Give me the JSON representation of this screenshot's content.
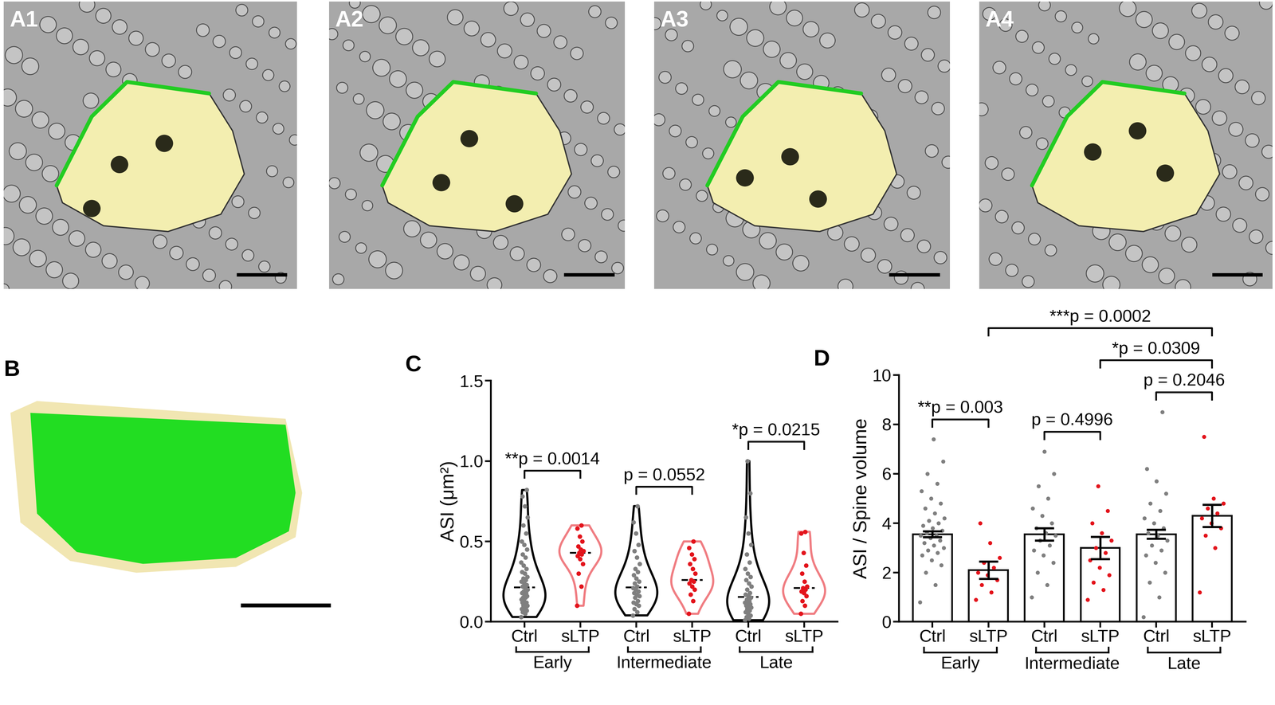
{
  "image_panels": [
    "A1",
    "A2",
    "A3",
    "A4",
    "B"
  ],
  "chart_data": [
    {
      "panel": "C",
      "type": "violin",
      "ylabel": "ASI (μm²)",
      "categories": [
        "Ctrl",
        "sLTP",
        "Ctrl",
        "sLTP",
        "Ctrl",
        "sLTP"
      ],
      "groups": [
        "Early",
        "Intermediate",
        "Late"
      ],
      "colors": [
        "#7f7f7f",
        "#e3131b",
        "#7f7f7f",
        "#e3131b",
        "#7f7f7f",
        "#e3131b"
      ],
      "points": [
        [
          0.03,
          0.05,
          0.06,
          0.07,
          0.08,
          0.08,
          0.09,
          0.1,
          0.1,
          0.11,
          0.12,
          0.12,
          0.13,
          0.14,
          0.15,
          0.15,
          0.16,
          0.17,
          0.18,
          0.18,
          0.19,
          0.2,
          0.21,
          0.22,
          0.23,
          0.24,
          0.25,
          0.26,
          0.27,
          0.28,
          0.3,
          0.31,
          0.33,
          0.35,
          0.37,
          0.4,
          0.42,
          0.45,
          0.48,
          0.5,
          0.55,
          0.6,
          0.65,
          0.72,
          0.78,
          0.82
        ],
        [
          0.1,
          0.22,
          0.3,
          0.36,
          0.39,
          0.41,
          0.42,
          0.43,
          0.44,
          0.45,
          0.47,
          0.5,
          0.53,
          0.58,
          0.6
        ],
        [
          0.04,
          0.06,
          0.08,
          0.1,
          0.11,
          0.12,
          0.13,
          0.15,
          0.16,
          0.17,
          0.18,
          0.19,
          0.2,
          0.21,
          0.22,
          0.24,
          0.25,
          0.27,
          0.29,
          0.31,
          0.33,
          0.36,
          0.4,
          0.44,
          0.48,
          0.55,
          0.62,
          0.72
        ],
        [
          0.05,
          0.13,
          0.17,
          0.2,
          0.22,
          0.24,
          0.25,
          0.26,
          0.3,
          0.33,
          0.36,
          0.39,
          0.42,
          0.46,
          0.5
        ],
        [
          0.01,
          0.02,
          0.03,
          0.04,
          0.05,
          0.06,
          0.07,
          0.08,
          0.09,
          0.1,
          0.1,
          0.11,
          0.12,
          0.12,
          0.13,
          0.14,
          0.15,
          0.16,
          0.17,
          0.18,
          0.2,
          0.22,
          0.24,
          0.26,
          0.28,
          0.3,
          0.33,
          0.37,
          0.42,
          0.48,
          0.55,
          0.65,
          0.8,
          1.0
        ],
        [
          0.05,
          0.1,
          0.13,
          0.16,
          0.18,
          0.19,
          0.2,
          0.21,
          0.22,
          0.25,
          0.3,
          0.35,
          0.43,
          0.55,
          0.56
        ]
      ],
      "ylim": [
        0,
        1.5
      ],
      "yticks": [
        {
          "value": 0,
          "label": "0.0"
        },
        {
          "value": 0.5,
          "label": "0.5"
        },
        {
          "value": 1.0,
          "label": "1.0"
        },
        {
          "value": 1.5,
          "label": "1.5"
        }
      ],
      "comparisons": [
        {
          "pair": [
            0,
            1
          ],
          "label": "**p = 0.0014"
        },
        {
          "pair": [
            2,
            3
          ],
          "label": "p = 0.0552"
        },
        {
          "pair": [
            4,
            5
          ],
          "label": "*p = 0.0215"
        }
      ]
    },
    {
      "panel": "D",
      "type": "bar",
      "ylabel": "ASI / Spine volume",
      "categories": [
        "Ctrl",
        "sLTP",
        "Ctrl",
        "sLTP",
        "Ctrl",
        "sLTP"
      ],
      "groups": [
        "Early",
        "Intermediate",
        "Late"
      ],
      "values": [
        3.55,
        2.1,
        3.55,
        3.0,
        3.55,
        4.3
      ],
      "errors": [
        0.12,
        0.35,
        0.25,
        0.45,
        0.18,
        0.45
      ],
      "color": "#ffffff",
      "colors": [
        "#7f7f7f",
        "#e3131b",
        "#7f7f7f",
        "#e3131b",
        "#7f7f7f",
        "#e3131b"
      ],
      "points": [
        [
          0.8,
          1.5,
          2.0,
          2.3,
          2.5,
          2.7,
          2.8,
          2.9,
          3.0,
          3.1,
          3.2,
          3.3,
          3.4,
          3.5,
          3.5,
          3.6,
          3.7,
          3.8,
          3.9,
          4.0,
          4.1,
          4.2,
          4.4,
          4.6,
          4.8,
          5.0,
          5.3,
          5.6,
          6.0,
          6.5,
          7.4
        ],
        [
          0.9,
          1.2,
          1.5,
          1.7,
          1.9,
          2.0,
          2.2,
          2.4,
          2.6,
          3.2,
          4.0
        ],
        [
          1.0,
          1.5,
          2.0,
          2.4,
          2.7,
          2.9,
          3.1,
          3.3,
          3.5,
          3.6,
          3.8,
          4.0,
          4.3,
          4.6,
          5.0,
          5.5,
          6.0,
          6.9
        ],
        [
          0.9,
          1.3,
          1.6,
          1.9,
          2.2,
          2.5,
          2.8,
          3.0,
          3.3,
          3.6,
          4.0,
          4.5,
          5.5
        ],
        [
          0.2,
          1.0,
          1.6,
          2.0,
          2.4,
          2.7,
          2.9,
          3.1,
          3.3,
          3.5,
          3.6,
          3.8,
          4.0,
          4.2,
          4.5,
          4.8,
          5.2,
          5.7,
          6.2,
          8.5
        ],
        [
          1.2,
          3.0,
          3.5,
          3.8,
          4.0,
          4.2,
          4.4,
          4.6,
          4.8,
          5.0,
          7.5
        ]
      ],
      "ylim": [
        0,
        10
      ],
      "yticks": [
        0,
        2,
        4,
        6,
        8,
        10
      ],
      "comparisons": [
        {
          "pair": [
            0,
            1
          ],
          "label": "**p = 0.003"
        },
        {
          "pair": [
            2,
            3
          ],
          "label": "p = 0.4996"
        },
        {
          "pair": [
            4,
            5
          ],
          "label": "p = 0.2046"
        },
        {
          "pair": [
            3,
            5
          ],
          "label": "*p = 0.0309"
        },
        {
          "pair": [
            1,
            5
          ],
          "label": "***p = 0.0002"
        }
      ]
    }
  ]
}
